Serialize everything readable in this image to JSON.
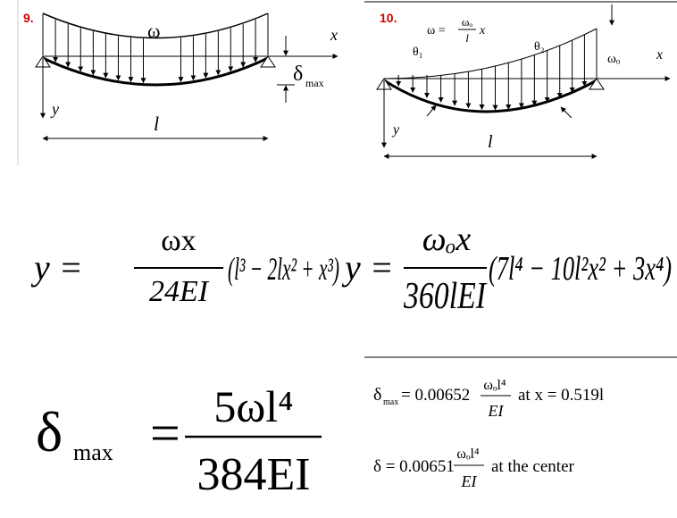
{
  "panel_9": {
    "number": "9.",
    "diagram": {
      "load": "ω",
      "x_axis": "x",
      "y_axis": "y",
      "length": "l",
      "deflection": "δ",
      "deflection_subscript": "max"
    },
    "deflection_equation": {
      "lhs": "y =",
      "numerator": "ωx",
      "denominator": "24EI",
      "factor": "(l³ − 2lx² + x³)"
    },
    "max_deflection": {
      "symbol": "δ",
      "subscript": "max",
      "equals": "=",
      "numerator": "5ωl⁴",
      "denominator": "384EI"
    }
  },
  "panel_10": {
    "number": "10.",
    "diagram": {
      "load_lhs": "ω =",
      "load_numerator": "ωₒ",
      "load_denominator": "l",
      "load_rhs": "x",
      "theta_1": "θ₁",
      "theta_2": "θ₂",
      "peak_load": "ωₒ",
      "x_axis": "x",
      "y_axis": "y",
      "length": "l"
    },
    "deflection_equation": {
      "lhs": "y =",
      "numerator": "ωₒx",
      "denominator": "360lEI",
      "factor": "(7l⁴ − 10l²x² + 3x⁴)"
    },
    "max_deflection": {
      "symbol": "δ",
      "subscript": "max",
      "coefficient": "= 0.00652",
      "numerator": "ωₒl⁴",
      "denominator": "EI",
      "location": "at x = 0.519l"
    },
    "center_deflection": {
      "lhs": "δ = 0.00651",
      "numerator": "ωₒl⁴",
      "denominator": "EI",
      "location": "at the center"
    }
  }
}
